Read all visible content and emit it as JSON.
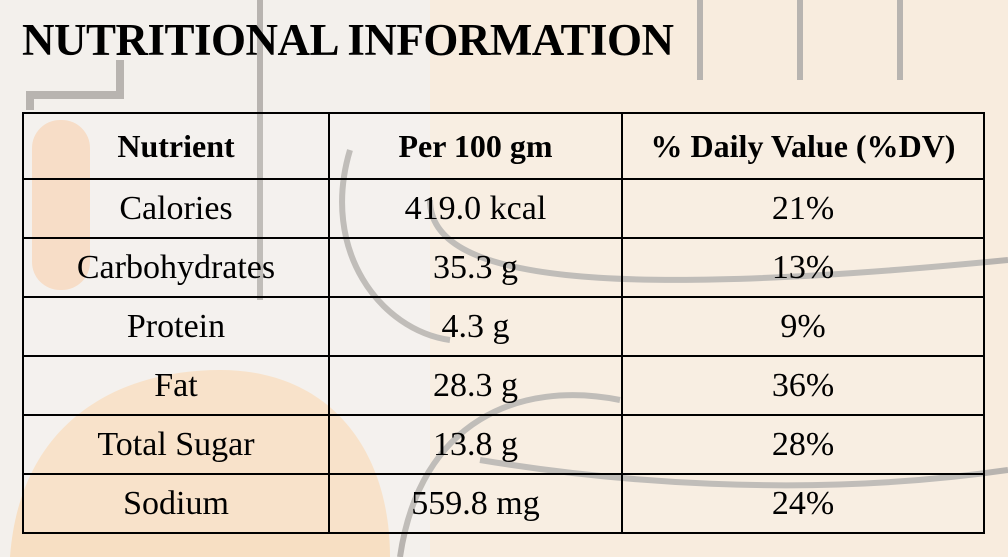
{
  "title": "NUTRITIONAL INFORMATION",
  "table": {
    "headers": [
      "Nutrient",
      "Per 100 gm",
      "% Daily Value (%DV)"
    ],
    "rows": [
      [
        "Calories",
        "419.0 kcal",
        "21%"
      ],
      [
        "Carbohydrates",
        "35.3 g",
        "13%"
      ],
      [
        "Protein",
        "4.3 g",
        "9%"
      ],
      [
        "Fat",
        "28.3 g",
        "36%"
      ],
      [
        "Total Sugar",
        "13.8 g",
        "28%"
      ],
      [
        "Sodium",
        "559.8 mg",
        "24%"
      ]
    ]
  },
  "colors": {
    "background": "#f3f0ec",
    "accent": "#f6dcc0",
    "doodle": "#b8b4b0"
  }
}
